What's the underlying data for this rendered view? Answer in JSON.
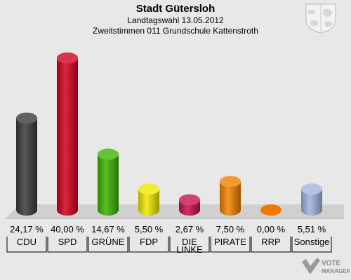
{
  "chart_data": {
    "type": "bar",
    "title": "Stadt Gütersloh",
    "subtitle": "Landtagswahl 13.05.2012",
    "subtitle2": "Zweitstimmen 011 Grundschule Kattenstroth",
    "ylim": [
      0,
      42
    ],
    "categories": [
      "CDU",
      "SPD",
      "GRÜNE",
      "FDP",
      "DIE LINKE",
      "PIRATE",
      "RRP",
      "Sonstige"
    ],
    "values": [
      24.17,
      40.0,
      14.67,
      5.5,
      2.67,
      7.5,
      0.0,
      5.51
    ],
    "value_labels": [
      "24,17 %",
      "40,00 %",
      "14,67 %",
      "5,50 %",
      "2,67 %",
      "7,50 %",
      "0,00 %",
      "5,51 %"
    ],
    "colors": [
      "#3a3a3a",
      "#d2001c",
      "#3cb400",
      "#f0e800",
      "#c8104a",
      "#f08200",
      "#f07800",
      "#a0b4e0"
    ],
    "grid": false,
    "legend": "none"
  },
  "branding": {
    "text1": "VOTE",
    "text2": "MANAGER"
  }
}
